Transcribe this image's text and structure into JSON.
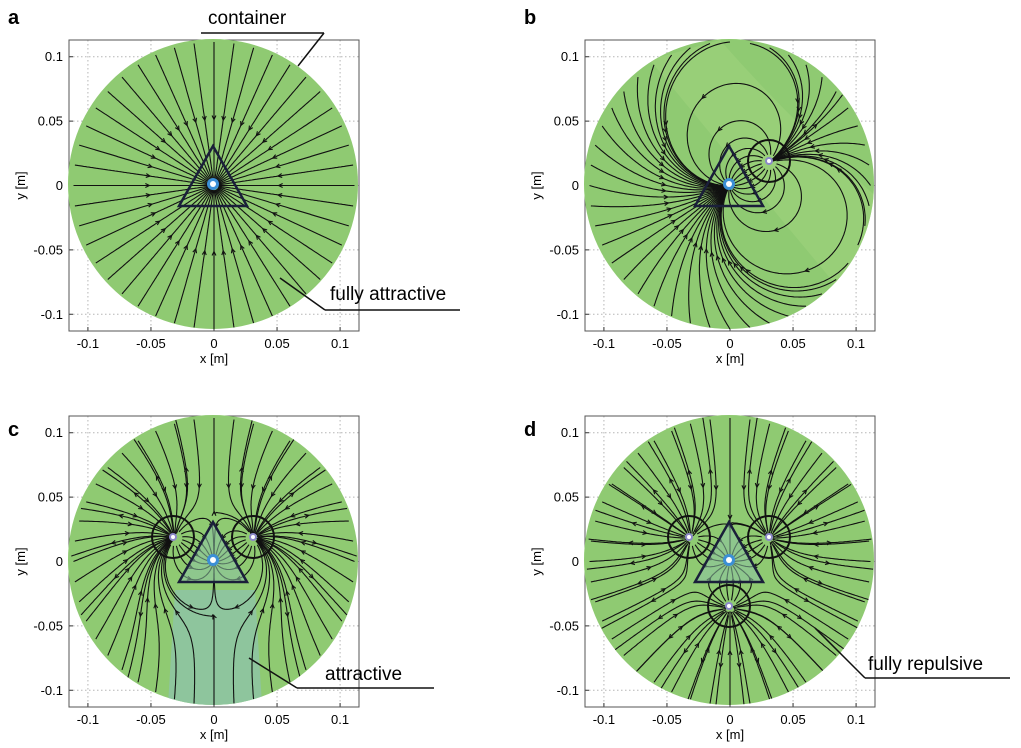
{
  "figure": {
    "panels": [
      {
        "letter": "a",
        "sinks": [
          [
            0,
            0
          ]
        ],
        "sources": []
      },
      {
        "letter": "b",
        "sinks": [
          [
            0,
            0
          ]
        ],
        "sources": [
          [
            0.031,
            0.018
          ]
        ]
      },
      {
        "letter": "c",
        "sinks": [
          [
            0,
            0
          ]
        ],
        "sources": [
          [
            -0.031,
            0.018
          ],
          [
            0.031,
            0.018
          ]
        ]
      },
      {
        "letter": "d",
        "sinks": [
          [
            0,
            0
          ]
        ],
        "sources": [
          [
            -0.031,
            0.018
          ],
          [
            0.031,
            0.018
          ],
          [
            0,
            -0.036
          ]
        ]
      }
    ],
    "axes": {
      "xlabel": "x [m]",
      "ylabel": "y [m]",
      "x_ticks": [
        "-0.1",
        "-0.05",
        "0",
        "0.05",
        "0.1"
      ],
      "y_ticks": [
        "0.1",
        "0.05",
        "0",
        "-0.05",
        "-0.1"
      ],
      "x_tick_values": [
        -0.1,
        -0.05,
        0,
        0.05,
        0.1
      ],
      "y_tick_values": [
        0.1,
        0.05,
        0,
        -0.05,
        -0.1
      ],
      "xlim": [
        -0.115,
        0.115
      ],
      "ylim": [
        -0.113,
        0.113
      ],
      "container_radius": 0.112
    },
    "annotations": {
      "container": "container",
      "fully_attractive": "fully attractive",
      "attractive": "attractive",
      "fully_repulsive": "fully repulsive"
    },
    "colors": {
      "green": "#8fca72",
      "blue_region": "#8ec4a4",
      "stream": "#111111",
      "grid": "#b5b5b5"
    }
  }
}
